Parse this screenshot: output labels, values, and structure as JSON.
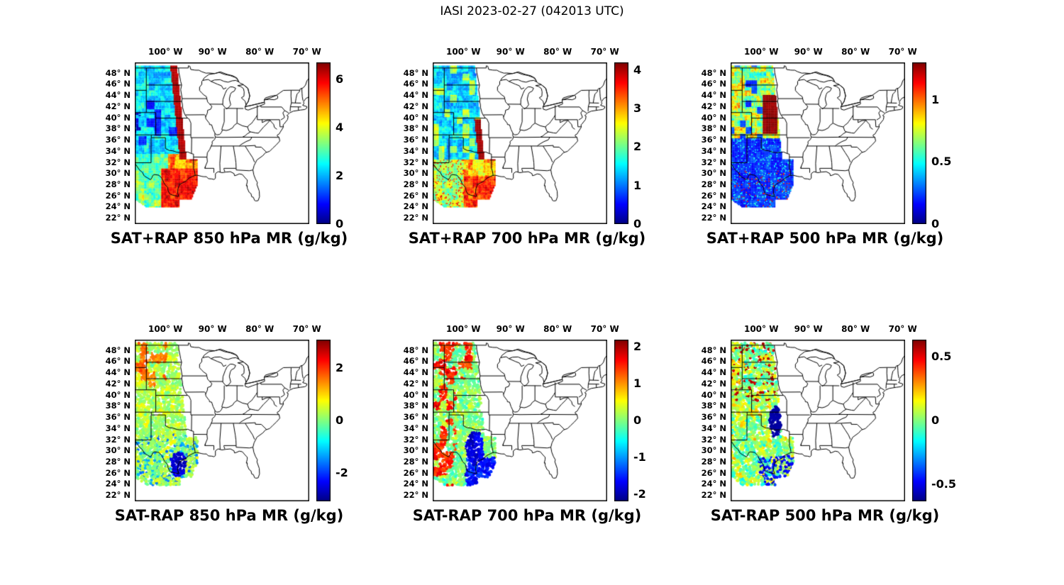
{
  "figure_title": "IASI 2023-02-27 (042013 UTC)",
  "axes": {
    "lon_tick_labels": [
      "100° W",
      "90° W",
      "80° W",
      "70° W"
    ],
    "lon_tick_values": [
      -100,
      -90,
      -80,
      -70
    ],
    "lat_tick_labels": [
      "48° N",
      "46° N",
      "44° N",
      "42° N",
      "40° N",
      "38° N",
      "36° N",
      "34° N",
      "32° N",
      "30° N",
      "28° N",
      "26° N",
      "24° N",
      "22° N"
    ],
    "lat_tick_values": [
      48,
      46,
      44,
      42,
      40,
      38,
      36,
      34,
      32,
      30,
      28,
      26,
      24,
      22
    ],
    "extent": {
      "lon_min": -106.5,
      "lon_max": -69.5,
      "lat_min": 21,
      "lat_max": 50
    }
  },
  "colors": {
    "colormap": "jet",
    "map_outline": "#000000",
    "background": "#ffffff",
    "text": "#000000"
  },
  "chart_data": [
    {
      "type": "heatmap",
      "row": 1,
      "col": 1,
      "title": "SAT+RAP 850 hPa MR (g/kg)",
      "quantity": "850 hPa water vapor mixing ratio (satellite + RAP)",
      "units": "g/kg",
      "colormap": "jet",
      "colorbar": {
        "min": 0,
        "max": 6.7,
        "tick_values": [
          6,
          4,
          2,
          0
        ],
        "tick_labels": [
          "6",
          "4",
          "2",
          "0"
        ]
      },
      "summary": "IASI swath over the Great Plains: cyan/blue field (1-3 g/kg) in the north, dark red band (>6 g/kg) along the eastern swath edge, dark red maximum over south Texas and the western Gulf."
    },
    {
      "type": "heatmap",
      "row": 1,
      "col": 2,
      "title": "SAT+RAP 700 hPa MR (g/kg)",
      "quantity": "700 hPa water vapor mixing ratio (satellite + RAP)",
      "units": "g/kg",
      "colormap": "jet",
      "colorbar": {
        "min": 0,
        "max": 4.2,
        "tick_values": [
          4,
          3,
          2,
          1,
          0
        ],
        "tick_labels": [
          "4",
          "3",
          "2",
          "1",
          "0"
        ]
      },
      "summary": "Mostly blue/cyan (0.5-2 g/kg) with green-yellow patches; short dark red band (~4 g/kg) on the swath edge near 33-40N; red maximum over deep south Texas."
    },
    {
      "type": "heatmap",
      "row": 1,
      "col": 3,
      "title": "SAT+RAP 500 hPa MR (g/kg)",
      "quantity": "500 hPa water vapor mixing ratio (satellite + RAP)",
      "units": "g/kg",
      "colormap": "jet",
      "colorbar": {
        "min": 0,
        "max": 1.3,
        "tick_values": [
          1,
          0.5,
          0
        ],
        "tick_labels": [
          "1",
          "0.5",
          "0"
        ]
      },
      "summary": "Textured cyan/yellow/red field north of ~37N with a dark red column (~1.3 g/kg) near 98W between 37-44N; dark blue (<0.3 g/kg) south with sparse red speckles near the Gulf coast."
    },
    {
      "type": "scatter",
      "row": 2,
      "col": 1,
      "title": "SAT-RAP 850 hPa MR (g/kg)",
      "quantity": "850 hPa mixing ratio difference (satellite minus RAP)",
      "units": "g/kg",
      "colormap": "jet",
      "colorbar": {
        "min": -3.1,
        "max": 3.1,
        "tick_values": [
          2,
          0,
          -2
        ],
        "tick_labels": [
          "2",
          "0",
          "-2"
        ]
      },
      "summary": "Scattered retrieval points: mostly green/yellow (near 0) with orange patches (+1 to +2) over the northern plains and dark blue cluster (-2 to -3) near the south Texas coast."
    },
    {
      "type": "scatter",
      "row": 2,
      "col": 2,
      "title": "SAT-RAP 700 hPa MR (g/kg)",
      "quantity": "700 hPa mixing ratio difference (satellite minus RAP)",
      "units": "g/kg",
      "colormap": "jet",
      "colorbar": {
        "min": -2.2,
        "max": 2.2,
        "tick_values": [
          2,
          1,
          0,
          -1,
          -2
        ],
        "tick_labels": [
          "2",
          "1",
          "0",
          "-1",
          "-2"
        ]
      },
      "summary": "Green/yellow background (near 0) with orange-red patches (+1 to +2) along the western edge and north, and blue/dark blue cluster (-1 to -2) over central/south Texas."
    },
    {
      "type": "scatter",
      "row": 2,
      "col": 3,
      "title": "SAT-RAP 500 hPa MR (g/kg)",
      "quantity": "500 hPa mixing ratio difference (satellite minus RAP)",
      "units": "g/kg",
      "colormap": "jet",
      "colorbar": {
        "min": -0.63,
        "max": 0.63,
        "tick_values": [
          0.5,
          0,
          -0.5
        ],
        "tick_labels": [
          "0.5",
          "0",
          "-0.5"
        ]
      },
      "summary": "Mixed green/yellow/orange with red speckles (+0.5) in the north, dark blue blob (-0.5) near 97W/33-38N and blue points near the Texas coast."
    }
  ]
}
